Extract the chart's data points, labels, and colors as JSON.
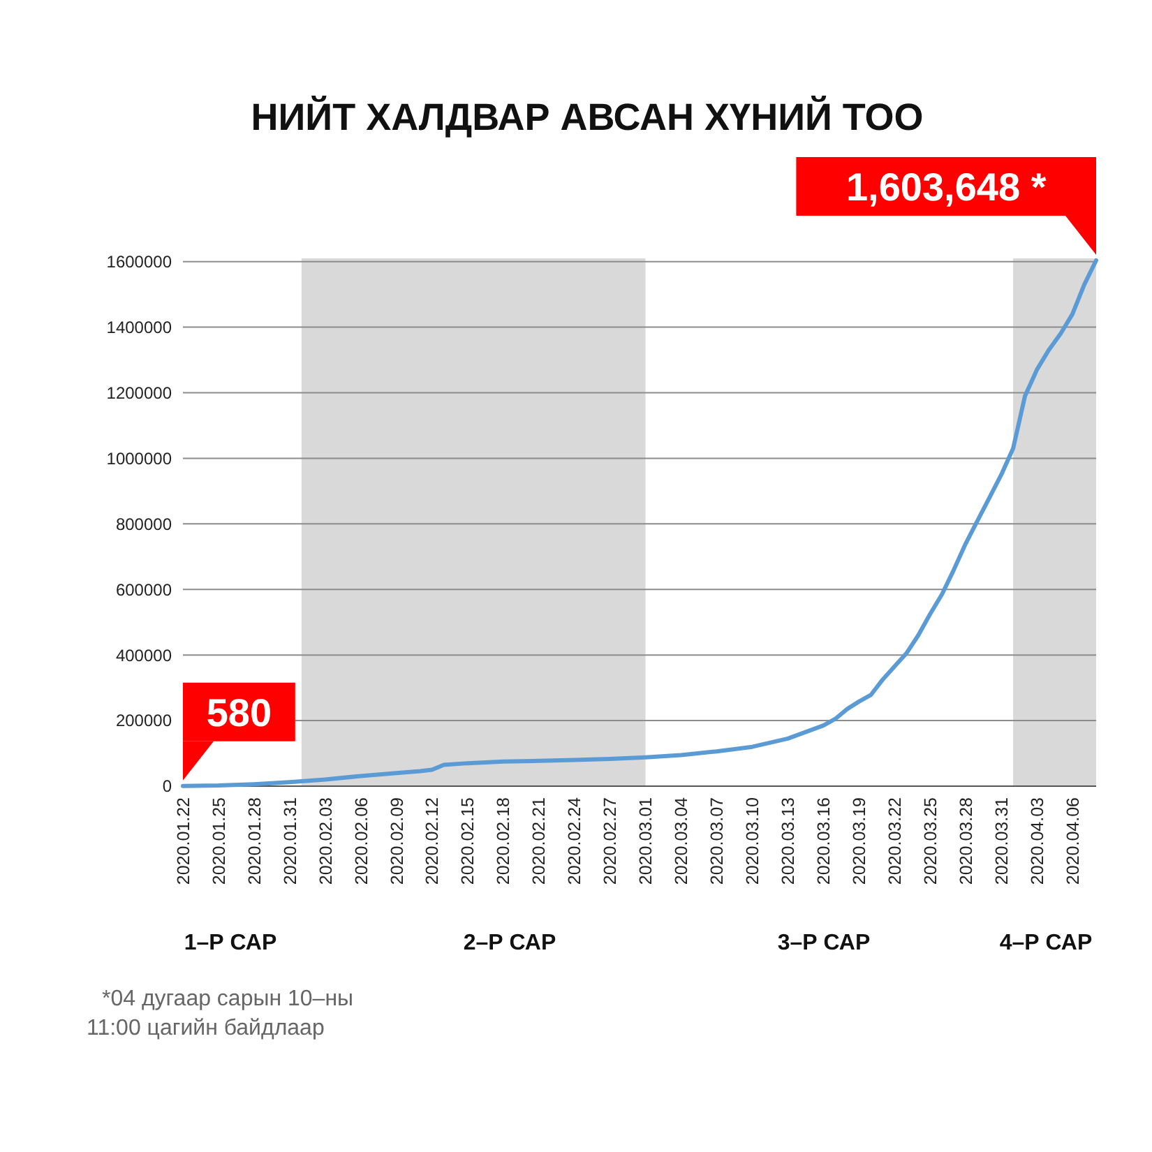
{
  "chart_data": {
    "type": "line",
    "title": "НИЙТ ХАЛДВАР АВСАН ХҮНИЙ ТОО",
    "x": [
      "2020-01-22",
      "2020-01-25",
      "2020-01-28",
      "2020-01-31",
      "2020-02-03",
      "2020-02-06",
      "2020-02-09",
      "2020-02-11",
      "2020-02-12",
      "2020-02-13",
      "2020-02-15",
      "2020-02-18",
      "2020-02-21",
      "2020-02-24",
      "2020-02-27",
      "2020-03-01",
      "2020-03-04",
      "2020-03-07",
      "2020-03-10",
      "2020-03-13",
      "2020-03-16",
      "2020-03-17",
      "2020-03-18",
      "2020-03-19",
      "2020-03-20",
      "2020-03-21",
      "2020-03-22",
      "2020-03-23",
      "2020-03-24",
      "2020-03-25",
      "2020-03-26",
      "2020-03-27",
      "2020-03-28",
      "2020-03-29",
      "2020-03-30",
      "2020-03-31",
      "2020-04-01",
      "2020-04-02",
      "2020-04-03",
      "2020-04-04",
      "2020-04-05",
      "2020-04-06",
      "2020-04-07",
      "2020-04-08"
    ],
    "values": [
      580,
      2000,
      6000,
      12000,
      20000,
      31000,
      40000,
      46000,
      50000,
      65000,
      70000,
      75000,
      77000,
      80000,
      83000,
      88000,
      95000,
      106000,
      120000,
      145000,
      185000,
      205000,
      235000,
      258000,
      278000,
      325000,
      365000,
      405000,
      460000,
      525000,
      585000,
      660000,
      740000,
      810000,
      880000,
      950000,
      1030000,
      1190000,
      1270000,
      1330000,
      1380000,
      1440000,
      1530000,
      1603648
    ],
    "value_labels": [
      "580",
      null,
      null,
      null,
      null,
      null,
      null,
      null,
      null,
      null,
      null,
      null,
      null,
      null,
      null,
      null,
      null,
      null,
      null,
      null,
      null,
      null,
      null,
      null,
      null,
      null,
      null,
      null,
      null,
      null,
      null,
      null,
      null,
      null,
      null,
      null,
      null,
      null,
      null,
      null,
      null,
      null,
      null,
      "1,603,648 *"
    ],
    "color": "#5b9bd5",
    "line_style": "solid",
    "marker": "none",
    "xlim": [
      "2020-01-22",
      "2020-04-08"
    ],
    "xticks": [
      {
        "value": "2020-01-22",
        "label": "2020.01.22"
      },
      {
        "value": "2020-01-25",
        "label": "2020.01.25"
      },
      {
        "value": "2020-01-28",
        "label": "2020.01.28"
      },
      {
        "value": "2020-01-31",
        "label": "2020.01.31"
      },
      {
        "value": "2020-02-03",
        "label": "2020.02.03"
      },
      {
        "value": "2020-02-06",
        "label": "2020.02.06"
      },
      {
        "value": "2020-02-09",
        "label": "2020.02.09"
      },
      {
        "value": "2020-02-12",
        "label": "2020.02.12"
      },
      {
        "value": "2020-02-15",
        "label": "2020.02.15"
      },
      {
        "value": "2020-02-18",
        "label": "2020.02.18"
      },
      {
        "value": "2020-02-21",
        "label": "2020.02.21"
      },
      {
        "value": "2020-02-24",
        "label": "2020.02.24"
      },
      {
        "value": "2020-02-27",
        "label": "2020.02.27"
      },
      {
        "value": "2020-03-01",
        "label": "2020.03.01"
      },
      {
        "value": "2020-03-04",
        "label": "2020.03.04"
      },
      {
        "value": "2020-03-07",
        "label": "2020.03.07"
      },
      {
        "value": "2020-03-10",
        "label": "2020.03.10"
      },
      {
        "value": "2020-03-13",
        "label": "2020.03.13"
      },
      {
        "value": "2020-03-16",
        "label": "2020.03.16"
      },
      {
        "value": "2020-03-19",
        "label": "2020.03.19"
      },
      {
        "value": "2020-03-22",
        "label": "2020.03.22"
      },
      {
        "value": "2020-03-25",
        "label": "2020.03.25"
      },
      {
        "value": "2020-03-28",
        "label": "2020.03.28"
      },
      {
        "value": "2020-03-31",
        "label": "2020.03.31"
      },
      {
        "value": "2020-04-03",
        "label": "2020.04.03"
      },
      {
        "value": "2020-04-06",
        "label": "2020.04.06"
      }
    ],
    "ylim": [
      0,
      1610000
    ],
    "yticks": [
      0,
      200000,
      400000,
      600000,
      800000,
      1000000,
      1200000,
      1400000,
      1600000
    ],
    "grid": "y",
    "bands": [
      {
        "axis": "x",
        "from": "2020-02-01",
        "to": "2020-03-01",
        "color": "#d9d9d9"
      },
      {
        "axis": "x",
        "from": "2020-04-01",
        "to": "2020-04-08",
        "color": "#d9d9d9"
      }
    ],
    "annotations": [
      "1–Р САР",
      "2–Р САР",
      "3–Р САР",
      "4–Р САР",
      "*04 дугаар сарын 10–ны\n11:00 цагийн байдлаар"
    ]
  }
}
